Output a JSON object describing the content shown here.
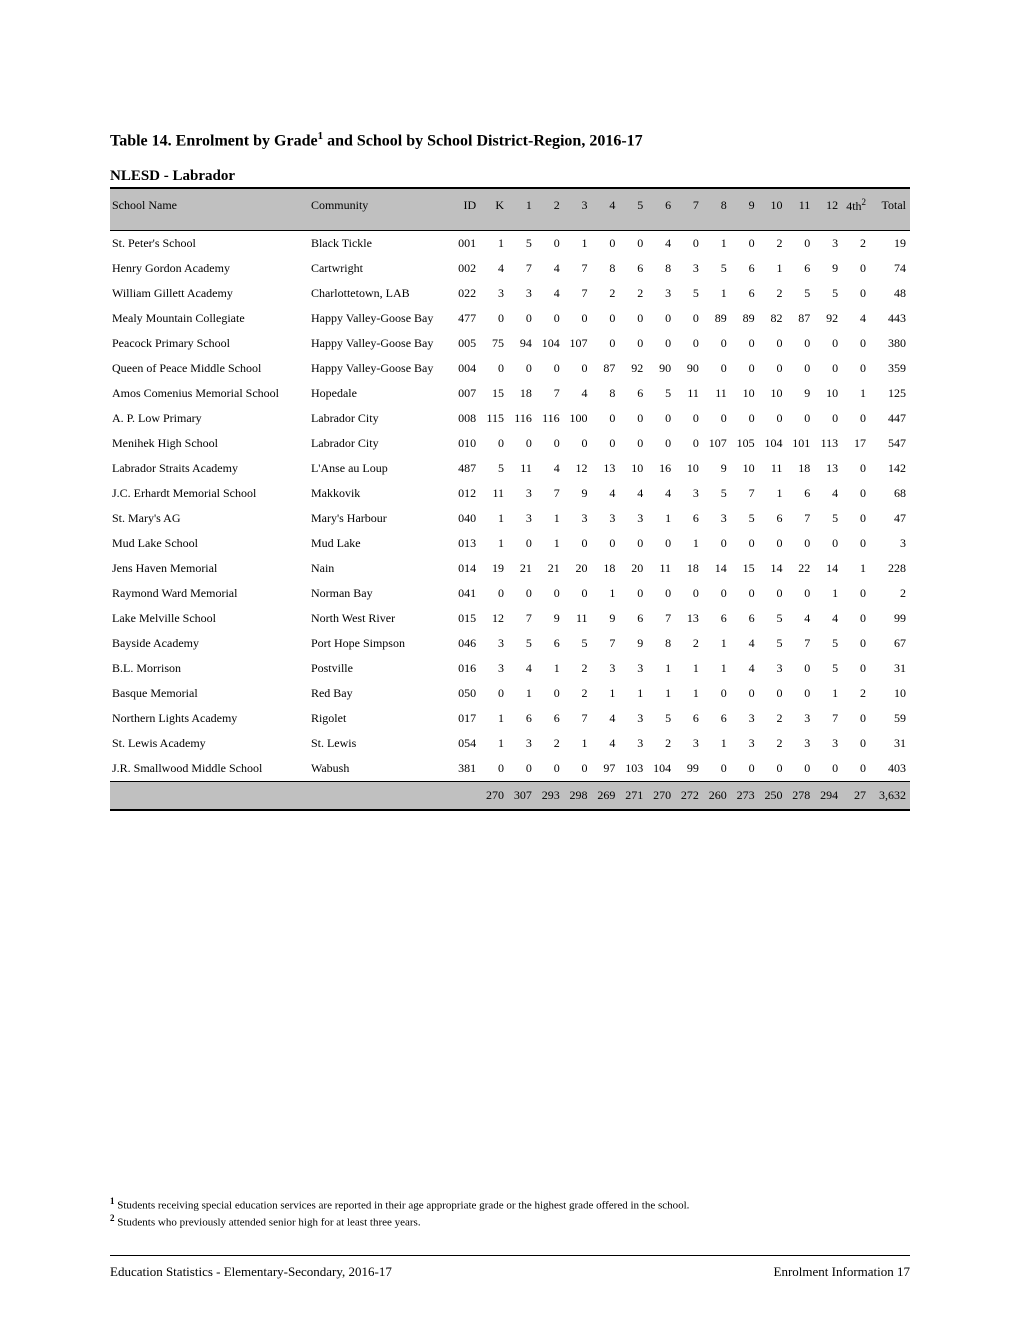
{
  "title_prefix": "Table 14.  Enrolment by Grade",
  "title_sup": "1",
  "title_suffix": " and School by School District-Region, 2016-17",
  "subtitle": "NLESD - Labrador",
  "columns": {
    "school": "School Name",
    "community": "Community",
    "id": "ID",
    "grades": [
      "K",
      "1",
      "2",
      "3",
      "4",
      "5",
      "6",
      "7",
      "8",
      "9",
      "10",
      "11",
      "12"
    ],
    "fourth": "4th",
    "fourth_sup": "2",
    "total": "Total"
  },
  "rows": [
    {
      "school": "St. Peter's School",
      "community": "Black Tickle",
      "id": "001",
      "v": [
        1,
        5,
        0,
        1,
        0,
        0,
        4,
        0,
        1,
        0,
        2,
        0,
        3,
        2,
        19
      ]
    },
    {
      "school": "Henry Gordon Academy",
      "community": "Cartwright",
      "id": "002",
      "v": [
        4,
        7,
        4,
        7,
        8,
        6,
        8,
        3,
        5,
        6,
        1,
        6,
        9,
        0,
        74
      ]
    },
    {
      "school": "William Gillett Academy",
      "community": "Charlottetown, LAB",
      "id": "022",
      "v": [
        3,
        3,
        4,
        7,
        2,
        2,
        3,
        5,
        1,
        6,
        2,
        5,
        5,
        0,
        48
      ]
    },
    {
      "school": "Mealy Mountain Collegiate",
      "community": "Happy Valley-Goose Bay",
      "id": "477",
      "v": [
        0,
        0,
        0,
        0,
        0,
        0,
        0,
        0,
        89,
        89,
        82,
        87,
        92,
        4,
        443
      ]
    },
    {
      "school": "Peacock Primary School",
      "community": "Happy Valley-Goose Bay",
      "id": "005",
      "v": [
        75,
        94,
        104,
        107,
        0,
        0,
        0,
        0,
        0,
        0,
        0,
        0,
        0,
        0,
        380
      ]
    },
    {
      "school": "Queen of Peace Middle School",
      "community": "Happy Valley-Goose Bay",
      "id": "004",
      "v": [
        0,
        0,
        0,
        0,
        87,
        92,
        90,
        90,
        0,
        0,
        0,
        0,
        0,
        0,
        359
      ]
    },
    {
      "school": "Amos Comenius Memorial School",
      "community": "Hopedale",
      "id": "007",
      "v": [
        15,
        18,
        7,
        4,
        8,
        6,
        5,
        11,
        11,
        10,
        10,
        9,
        10,
        1,
        125
      ]
    },
    {
      "school": "A. P. Low Primary",
      "community": "Labrador City",
      "id": "008",
      "v": [
        115,
        116,
        116,
        100,
        0,
        0,
        0,
        0,
        0,
        0,
        0,
        0,
        0,
        0,
        447
      ]
    },
    {
      "school": "Menihek High School",
      "community": "Labrador City",
      "id": "010",
      "v": [
        0,
        0,
        0,
        0,
        0,
        0,
        0,
        0,
        107,
        105,
        104,
        101,
        113,
        17,
        547
      ]
    },
    {
      "school": "Labrador Straits Academy",
      "community": "L'Anse au Loup",
      "id": "487",
      "v": [
        5,
        11,
        4,
        12,
        13,
        10,
        16,
        10,
        9,
        10,
        11,
        18,
        13,
        0,
        142
      ]
    },
    {
      "school": "J.C. Erhardt Memorial School",
      "community": "Makkovik",
      "id": "012",
      "v": [
        11,
        3,
        7,
        9,
        4,
        4,
        4,
        3,
        5,
        7,
        1,
        6,
        4,
        0,
        68
      ]
    },
    {
      "school": "St. Mary's AG",
      "community": "Mary's Harbour",
      "id": "040",
      "v": [
        1,
        3,
        1,
        3,
        3,
        3,
        1,
        6,
        3,
        5,
        6,
        7,
        5,
        0,
        47
      ]
    },
    {
      "school": "Mud Lake School",
      "community": "Mud Lake",
      "id": "013",
      "v": [
        1,
        0,
        1,
        0,
        0,
        0,
        0,
        1,
        0,
        0,
        0,
        0,
        0,
        0,
        3
      ]
    },
    {
      "school": "Jens Haven Memorial",
      "community": "Nain",
      "id": "014",
      "v": [
        19,
        21,
        21,
        20,
        18,
        20,
        11,
        18,
        14,
        15,
        14,
        22,
        14,
        1,
        228
      ]
    },
    {
      "school": "Raymond Ward Memorial",
      "community": "Norman Bay",
      "id": "041",
      "v": [
        0,
        0,
        0,
        0,
        1,
        0,
        0,
        0,
        0,
        0,
        0,
        0,
        1,
        0,
        2
      ]
    },
    {
      "school": "Lake Melville School",
      "community": "North West River",
      "id": "015",
      "v": [
        12,
        7,
        9,
        11,
        9,
        6,
        7,
        13,
        6,
        6,
        5,
        4,
        4,
        0,
        99
      ]
    },
    {
      "school": "Bayside Academy",
      "community": "Port Hope Simpson",
      "id": "046",
      "v": [
        3,
        5,
        6,
        5,
        7,
        9,
        8,
        2,
        1,
        4,
        5,
        7,
        5,
        0,
        67
      ]
    },
    {
      "school": "B.L. Morrison",
      "community": "Postville",
      "id": "016",
      "v": [
        3,
        4,
        1,
        2,
        3,
        3,
        1,
        1,
        1,
        4,
        3,
        0,
        5,
        0,
        31
      ]
    },
    {
      "school": "Basque Memorial",
      "community": "Red Bay",
      "id": "050",
      "v": [
        0,
        1,
        0,
        2,
        1,
        1,
        1,
        1,
        0,
        0,
        0,
        0,
        1,
        2,
        10
      ]
    },
    {
      "school": "Northern Lights Academy",
      "community": "Rigolet",
      "id": "017",
      "v": [
        1,
        6,
        6,
        7,
        4,
        3,
        5,
        6,
        6,
        3,
        2,
        3,
        7,
        0,
        59
      ]
    },
    {
      "school": "St. Lewis Academy",
      "community": "St. Lewis",
      "id": "054",
      "v": [
        1,
        3,
        2,
        1,
        4,
        3,
        2,
        3,
        1,
        3,
        2,
        3,
        3,
        0,
        31
      ]
    },
    {
      "school": "J.R. Smallwood Middle School",
      "community": "Wabush",
      "id": "381",
      "v": [
        0,
        0,
        0,
        0,
        97,
        103,
        104,
        99,
        0,
        0,
        0,
        0,
        0,
        0,
        403
      ]
    }
  ],
  "totals": [
    "270",
    "307",
    "293",
    "298",
    "269",
    "271",
    "270",
    "272",
    "260",
    "273",
    "250",
    "278",
    "294",
    "27",
    "3,632"
  ],
  "footnote1_sup": "1",
  "footnote1": " Students receiving special education services are reported in their age appropriate grade or the highest grade offered in the school.",
  "footnote2_sup": "2",
  "footnote2": " Students who previously attended senior high for at least three years.",
  "footer_left": "Education Statistics - Elementary-Secondary, 2016-17",
  "footer_right": "Enrolment Information 17"
}
